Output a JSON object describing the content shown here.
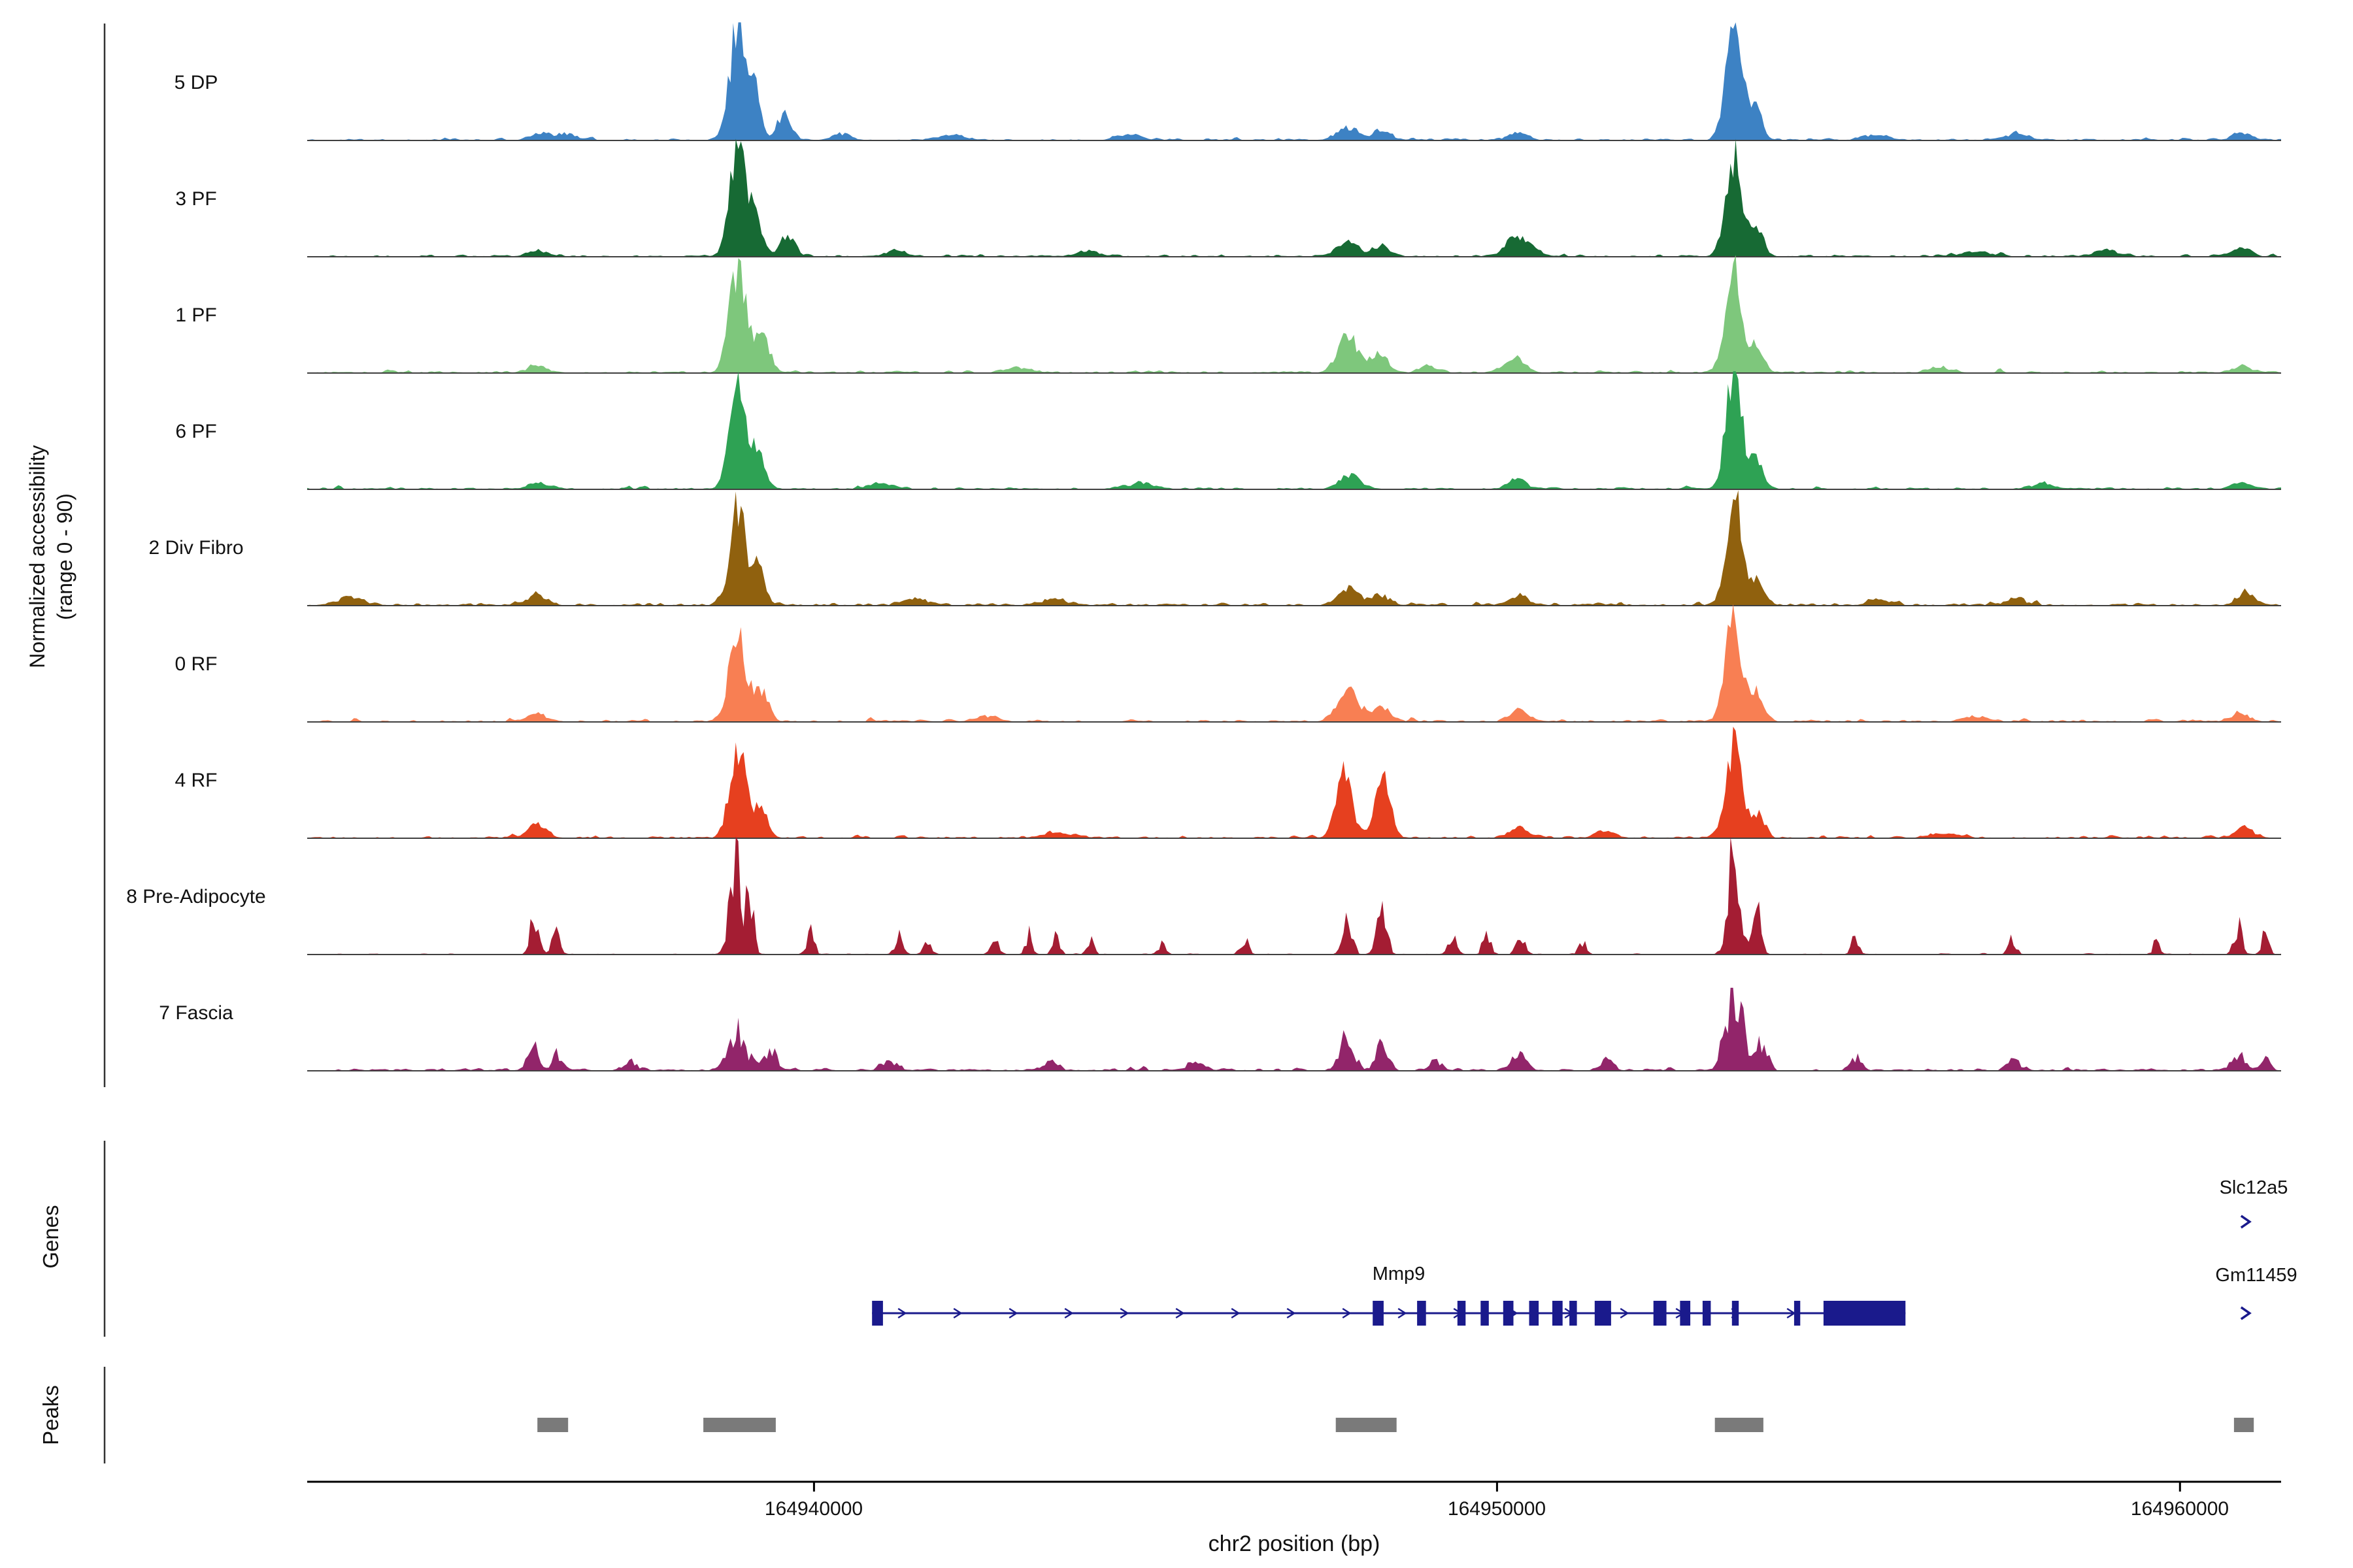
{
  "labels": {
    "y_axis_line1": "Normalized accessibility",
    "y_axis_line2": "(range 0 - 90)",
    "genes_section": "Genes",
    "peaks_section": "Peaks",
    "x_axis_title": "chr2 position (bp)"
  },
  "chart_data": {
    "type": "area",
    "subtype": "genome-coverage-tracks",
    "xlabel": "chr2 position (bp)",
    "ylabel": "Normalized accessibility (range 0 - 90)",
    "x_range": [
      164932580,
      164961480
    ],
    "y_range_per_track": [
      0,
      90
    ],
    "x_ticks": [
      {
        "value": 164940000,
        "label": "164940000"
      },
      {
        "value": 164950000,
        "label": "164950000"
      },
      {
        "value": 164960000,
        "label": "164960000"
      }
    ],
    "colors": {
      "gene": "#1A1A8C",
      "peak": "#7A7A7A",
      "baseline": "#404040",
      "axis": "#000000"
    },
    "tracks": [
      {
        "name": "5 DP",
        "color": "#3D82C4",
        "seed": 11,
        "noise_amp": 2.2,
        "jitter": 0.25,
        "peaks": [
          [
            164936000,
            6,
            150
          ],
          [
            164936400,
            5,
            120
          ],
          [
            164938880,
            86,
            120
          ],
          [
            164939120,
            40,
            90
          ],
          [
            164939560,
            20,
            110
          ],
          [
            164940400,
            5,
            150
          ],
          [
            164942000,
            4,
            200
          ],
          [
            164944600,
            5,
            180
          ],
          [
            164947800,
            9,
            160
          ],
          [
            164948300,
            7,
            140
          ],
          [
            164950300,
            6,
            140
          ],
          [
            164953470,
            86,
            125
          ],
          [
            164953800,
            24,
            90
          ],
          [
            164955500,
            4,
            180
          ],
          [
            164957600,
            5,
            160
          ],
          [
            164960900,
            6,
            140
          ]
        ]
      },
      {
        "name": "3 PF",
        "color": "#176A34",
        "seed": 22,
        "noise_amp": 2.2,
        "jitter": 0.25,
        "peaks": [
          [
            164935950,
            5,
            150
          ],
          [
            164938880,
            84,
            115
          ],
          [
            164939150,
            30,
            90
          ],
          [
            164939600,
            16,
            110
          ],
          [
            164941200,
            5,
            160
          ],
          [
            164944000,
            4,
            180
          ],
          [
            164947800,
            11,
            150
          ],
          [
            164948300,
            8,
            130
          ],
          [
            164950250,
            15,
            120
          ],
          [
            164950500,
            9,
            100
          ],
          [
            164953470,
            82,
            120
          ],
          [
            164953820,
            20,
            90
          ],
          [
            164957000,
            4,
            180
          ],
          [
            164958900,
            6,
            150
          ],
          [
            164960900,
            7,
            130
          ]
        ]
      },
      {
        "name": "1 PF",
        "color": "#7EC77C",
        "seed": 33,
        "noise_amp": 2.2,
        "jitter": 0.25,
        "peaks": [
          [
            164935950,
            5,
            150
          ],
          [
            164938880,
            80,
            125
          ],
          [
            164939250,
            28,
            110
          ],
          [
            164943000,
            4,
            200
          ],
          [
            164947820,
            30,
            150
          ],
          [
            164948280,
            16,
            120
          ],
          [
            164949000,
            5,
            140
          ],
          [
            164950280,
            13,
            130
          ],
          [
            164953470,
            80,
            125
          ],
          [
            164953820,
            22,
            90
          ],
          [
            164956500,
            4,
            180
          ],
          [
            164960900,
            5,
            140
          ]
        ]
      },
      {
        "name": "6 PF",
        "color": "#2EA254",
        "seed": 44,
        "noise_amp": 2.2,
        "jitter": 0.25,
        "peaks": [
          [
            164935950,
            5,
            150
          ],
          [
            164938880,
            78,
            120
          ],
          [
            164939180,
            32,
            100
          ],
          [
            164941000,
            4,
            180
          ],
          [
            164944800,
            5,
            170
          ],
          [
            164947850,
            11,
            150
          ],
          [
            164950300,
            7,
            140
          ],
          [
            164953470,
            88,
            120
          ],
          [
            164953800,
            24,
            90
          ],
          [
            164958000,
            4,
            180
          ],
          [
            164960900,
            6,
            140
          ]
        ]
      },
      {
        "name": "2 Div Fibro",
        "color": "#90610E",
        "seed": 55,
        "noise_amp": 2.8,
        "jitter": 0.3,
        "peaks": [
          [
            164933200,
            6,
            200
          ],
          [
            164935950,
            8,
            160
          ],
          [
            164938880,
            74,
            120
          ],
          [
            164939180,
            28,
            100
          ],
          [
            164941500,
            5,
            180
          ],
          [
            164943500,
            5,
            180
          ],
          [
            164947820,
            13,
            160
          ],
          [
            164948300,
            8,
            130
          ],
          [
            164950300,
            8,
            140
          ],
          [
            164953470,
            88,
            115
          ],
          [
            164953820,
            20,
            90
          ],
          [
            164955600,
            5,
            170
          ],
          [
            164957600,
            5,
            160
          ],
          [
            164960950,
            10,
            130
          ]
        ]
      },
      {
        "name": "0 RF",
        "color": "#F87F53",
        "seed": 66,
        "noise_amp": 2.4,
        "jitter": 0.25,
        "peaks": [
          [
            164935950,
            6,
            150
          ],
          [
            164938880,
            66,
            125
          ],
          [
            164939220,
            24,
            110
          ],
          [
            164942500,
            4,
            180
          ],
          [
            164947820,
            24,
            160
          ],
          [
            164948320,
            11,
            120
          ],
          [
            164950300,
            9,
            130
          ],
          [
            164953470,
            82,
            120
          ],
          [
            164953820,
            22,
            90
          ],
          [
            164957000,
            4,
            170
          ],
          [
            164960900,
            6,
            140
          ]
        ]
      },
      {
        "name": "4 RF",
        "color": "#E6401F",
        "seed": 77,
        "noise_amp": 2.4,
        "jitter": 0.25,
        "peaks": [
          [
            164935950,
            12,
            130
          ],
          [
            164938880,
            74,
            115
          ],
          [
            164939220,
            22,
            100
          ],
          [
            164943600,
            5,
            170
          ],
          [
            164947760,
            56,
            110
          ],
          [
            164948320,
            48,
            110
          ],
          [
            164950300,
            9,
            130
          ],
          [
            164951600,
            5,
            150
          ],
          [
            164953470,
            72,
            120
          ],
          [
            164953820,
            20,
            90
          ],
          [
            164956500,
            4,
            170
          ],
          [
            164960950,
            8,
            130
          ]
        ]
      },
      {
        "name": "8 Pre-Adipocyte",
        "color": "#A41D33",
        "seed": 88,
        "noise_amp": 1.0,
        "jitter": 0.55,
        "peaks": [
          [
            164935900,
            30,
            60
          ],
          [
            164936220,
            24,
            55
          ],
          [
            164938850,
            78,
            80
          ],
          [
            164939050,
            50,
            60
          ],
          [
            164939950,
            16,
            55
          ],
          [
            164941250,
            17,
            60
          ],
          [
            164941650,
            11,
            50
          ],
          [
            164942650,
            14,
            55
          ],
          [
            164943150,
            16,
            50
          ],
          [
            164943550,
            13,
            50
          ],
          [
            164944050,
            11,
            50
          ],
          [
            164945100,
            9,
            50
          ],
          [
            164946300,
            13,
            55
          ],
          [
            164947800,
            38,
            70
          ],
          [
            164948320,
            42,
            65
          ],
          [
            164949350,
            16,
            55
          ],
          [
            164949850,
            18,
            55
          ],
          [
            164950350,
            18,
            60
          ],
          [
            164951250,
            11,
            50
          ],
          [
            164953470,
            90,
            80
          ],
          [
            164953800,
            36,
            60
          ],
          [
            164955250,
            15,
            55
          ],
          [
            164957550,
            13,
            55
          ],
          [
            164959650,
            9,
            50
          ],
          [
            164960850,
            20,
            60
          ],
          [
            164961250,
            16,
            50
          ]
        ]
      },
      {
        "name": "7 Fascia",
        "color": "#92256A",
        "seed": 99,
        "noise_amp": 2.6,
        "jitter": 0.45,
        "peaks": [
          [
            164935880,
            20,
            80
          ],
          [
            164936250,
            13,
            70
          ],
          [
            164937300,
            7,
            100
          ],
          [
            164938880,
            30,
            130
          ],
          [
            164939350,
            16,
            100
          ],
          [
            164941100,
            6,
            130
          ],
          [
            164943450,
            9,
            100
          ],
          [
            164945600,
            6,
            130
          ],
          [
            164947800,
            26,
            110
          ],
          [
            164948320,
            20,
            90
          ],
          [
            164949100,
            7,
            100
          ],
          [
            164950320,
            13,
            100
          ],
          [
            164951600,
            7,
            100
          ],
          [
            164953470,
            70,
            120
          ],
          [
            164953880,
            24,
            80
          ],
          [
            164955250,
            9,
            90
          ],
          [
            164957550,
            7,
            100
          ],
          [
            164960850,
            13,
            90
          ],
          [
            164961250,
            9,
            70
          ]
        ]
      }
    ],
    "genes": [
      {
        "name": "Slc12a5",
        "strand": "+",
        "display": "arrow",
        "row": "top",
        "arrow_bp": 164960980
      },
      {
        "name": "Mmp9",
        "strand": "+",
        "display": "model",
        "row": "bottom",
        "start": 164940850,
        "end": 164955980,
        "label_bp": 164948560,
        "exons": [
          [
            164940850,
            164941010
          ],
          [
            164948180,
            164948340
          ],
          [
            164948830,
            164948960
          ],
          [
            164949420,
            164949540
          ],
          [
            164949760,
            164949880
          ],
          [
            164950090,
            164950240
          ],
          [
            164950470,
            164950610
          ],
          [
            164950810,
            164950960
          ],
          [
            164951060,
            164951170
          ],
          [
            164951430,
            164951670
          ],
          [
            164952290,
            164952480
          ],
          [
            164952680,
            164952830
          ],
          [
            164953010,
            164953130
          ],
          [
            164953440,
            164953540
          ],
          [
            164954350,
            164954440
          ],
          [
            164954780,
            164955980
          ]
        ]
      },
      {
        "name": "Gm11459",
        "strand": "+",
        "display": "arrow",
        "row": "bottom",
        "arrow_bp": 164960980
      }
    ],
    "peak_regions": [
      [
        164935950,
        164936400
      ],
      [
        164938380,
        164939440
      ],
      [
        164947640,
        164948530
      ],
      [
        164953190,
        164953900
      ],
      [
        164960790,
        164961080
      ]
    ]
  }
}
